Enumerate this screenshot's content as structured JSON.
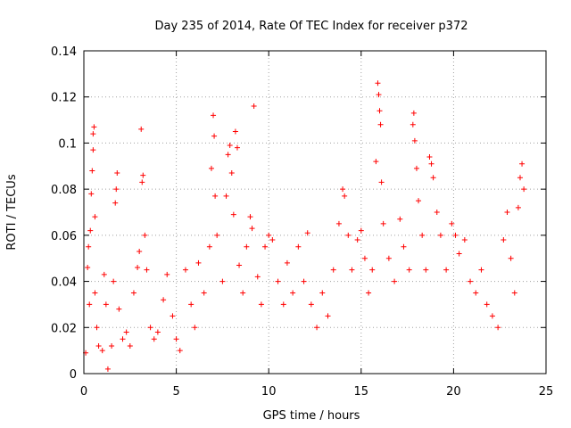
{
  "chart_data": {
    "type": "scatter",
    "title": "Day 235 of 2014, Rate Of TEC Index for receiver p372",
    "xlabel": "GPS time / hours",
    "ylabel": "ROTI / TECUs",
    "xlim": [
      0,
      25
    ],
    "ylim": [
      0,
      0.14
    ],
    "xticks": [
      0,
      5,
      10,
      15,
      20,
      25
    ],
    "yticks": [
      0,
      0.02,
      0.04,
      0.06,
      0.08,
      0.1,
      0.12,
      0.14
    ],
    "xtick_labels": [
      "0",
      "5",
      "10",
      "15",
      "20",
      "25"
    ],
    "ytick_labels": [
      "0",
      "0.02",
      "0.04",
      "0.06",
      "0.08",
      "0.1",
      "0.12",
      "0.14"
    ],
    "grid": true,
    "marker": "+",
    "color": "#ff0000",
    "series": [
      {
        "name": "ROTI",
        "points": [
          [
            0.1,
            0.009
          ],
          [
            0.2,
            0.046
          ],
          [
            0.25,
            0.055
          ],
          [
            0.3,
            0.03
          ],
          [
            0.35,
            0.062
          ],
          [
            0.4,
            0.078
          ],
          [
            0.45,
            0.088
          ],
          [
            0.5,
            0.097
          ],
          [
            0.5,
            0.104
          ],
          [
            0.55,
            0.107
          ],
          [
            0.6,
            0.068
          ],
          [
            0.6,
            0.035
          ],
          [
            0.7,
            0.02
          ],
          [
            0.8,
            0.012
          ],
          [
            1.0,
            0.01
          ],
          [
            1.1,
            0.043
          ],
          [
            1.2,
            0.03
          ],
          [
            1.3,
            0.002
          ],
          [
            1.5,
            0.012
          ],
          [
            1.6,
            0.04
          ],
          [
            1.7,
            0.074
          ],
          [
            1.75,
            0.08
          ],
          [
            1.8,
            0.087
          ],
          [
            1.9,
            0.028
          ],
          [
            2.1,
            0.015
          ],
          [
            2.3,
            0.018
          ],
          [
            2.5,
            0.012
          ],
          [
            2.7,
            0.035
          ],
          [
            2.9,
            0.046
          ],
          [
            3.0,
            0.053
          ],
          [
            3.1,
            0.106
          ],
          [
            3.15,
            0.083
          ],
          [
            3.2,
            0.086
          ],
          [
            3.3,
            0.06
          ],
          [
            3.4,
            0.045
          ],
          [
            3.6,
            0.02
          ],
          [
            3.8,
            0.015
          ],
          [
            4.0,
            0.018
          ],
          [
            4.3,
            0.032
          ],
          [
            4.5,
            0.043
          ],
          [
            4.8,
            0.025
          ],
          [
            5.0,
            0.015
          ],
          [
            5.2,
            0.01
          ],
          [
            5.5,
            0.045
          ],
          [
            5.8,
            0.03
          ],
          [
            6.0,
            0.02
          ],
          [
            6.2,
            0.048
          ],
          [
            6.5,
            0.035
          ],
          [
            6.8,
            0.055
          ],
          [
            6.9,
            0.089
          ],
          [
            7.0,
            0.112
          ],
          [
            7.05,
            0.103
          ],
          [
            7.1,
            0.077
          ],
          [
            7.2,
            0.06
          ],
          [
            7.5,
            0.04
          ],
          [
            7.7,
            0.077
          ],
          [
            7.8,
            0.095
          ],
          [
            7.9,
            0.099
          ],
          [
            8.0,
            0.087
          ],
          [
            8.1,
            0.069
          ],
          [
            8.2,
            0.105
          ],
          [
            8.3,
            0.098
          ],
          [
            8.4,
            0.047
          ],
          [
            8.6,
            0.035
          ],
          [
            8.8,
            0.055
          ],
          [
            9.0,
            0.068
          ],
          [
            9.1,
            0.063
          ],
          [
            9.2,
            0.116
          ],
          [
            9.4,
            0.042
          ],
          [
            9.6,
            0.03
          ],
          [
            9.8,
            0.055
          ],
          [
            10.0,
            0.06
          ],
          [
            10.2,
            0.058
          ],
          [
            10.5,
            0.04
          ],
          [
            10.8,
            0.03
          ],
          [
            11.0,
            0.048
          ],
          [
            11.3,
            0.035
          ],
          [
            11.6,
            0.055
          ],
          [
            11.9,
            0.04
          ],
          [
            12.1,
            0.061
          ],
          [
            12.3,
            0.03
          ],
          [
            12.6,
            0.02
          ],
          [
            12.9,
            0.035
          ],
          [
            13.2,
            0.025
          ],
          [
            13.5,
            0.045
          ],
          [
            13.8,
            0.065
          ],
          [
            14.0,
            0.08
          ],
          [
            14.1,
            0.077
          ],
          [
            14.3,
            0.06
          ],
          [
            14.5,
            0.045
          ],
          [
            14.8,
            0.058
          ],
          [
            15.0,
            0.062
          ],
          [
            15.2,
            0.05
          ],
          [
            15.4,
            0.035
          ],
          [
            15.6,
            0.045
          ],
          [
            15.8,
            0.092
          ],
          [
            15.9,
            0.126
          ],
          [
            15.95,
            0.121
          ],
          [
            16.0,
            0.114
          ],
          [
            16.05,
            0.108
          ],
          [
            16.1,
            0.083
          ],
          [
            16.2,
            0.065
          ],
          [
            16.5,
            0.05
          ],
          [
            16.8,
            0.04
          ],
          [
            17.1,
            0.067
          ],
          [
            17.3,
            0.055
          ],
          [
            17.6,
            0.045
          ],
          [
            17.8,
            0.108
          ],
          [
            17.85,
            0.113
          ],
          [
            17.9,
            0.101
          ],
          [
            18.0,
            0.089
          ],
          [
            18.1,
            0.075
          ],
          [
            18.3,
            0.06
          ],
          [
            18.5,
            0.045
          ],
          [
            18.7,
            0.094
          ],
          [
            18.8,
            0.091
          ],
          [
            18.9,
            0.085
          ],
          [
            19.1,
            0.07
          ],
          [
            19.3,
            0.06
          ],
          [
            19.6,
            0.045
          ],
          [
            19.9,
            0.065
          ],
          [
            20.1,
            0.06
          ],
          [
            20.3,
            0.052
          ],
          [
            20.6,
            0.058
          ],
          [
            20.9,
            0.04
          ],
          [
            21.2,
            0.035
          ],
          [
            21.5,
            0.045
          ],
          [
            21.8,
            0.03
          ],
          [
            22.1,
            0.025
          ],
          [
            22.4,
            0.02
          ],
          [
            22.7,
            0.058
          ],
          [
            22.9,
            0.07
          ],
          [
            23.1,
            0.05
          ],
          [
            23.3,
            0.035
          ],
          [
            23.5,
            0.072
          ],
          [
            23.6,
            0.085
          ],
          [
            23.7,
            0.091
          ],
          [
            23.8,
            0.08
          ]
        ]
      }
    ]
  }
}
